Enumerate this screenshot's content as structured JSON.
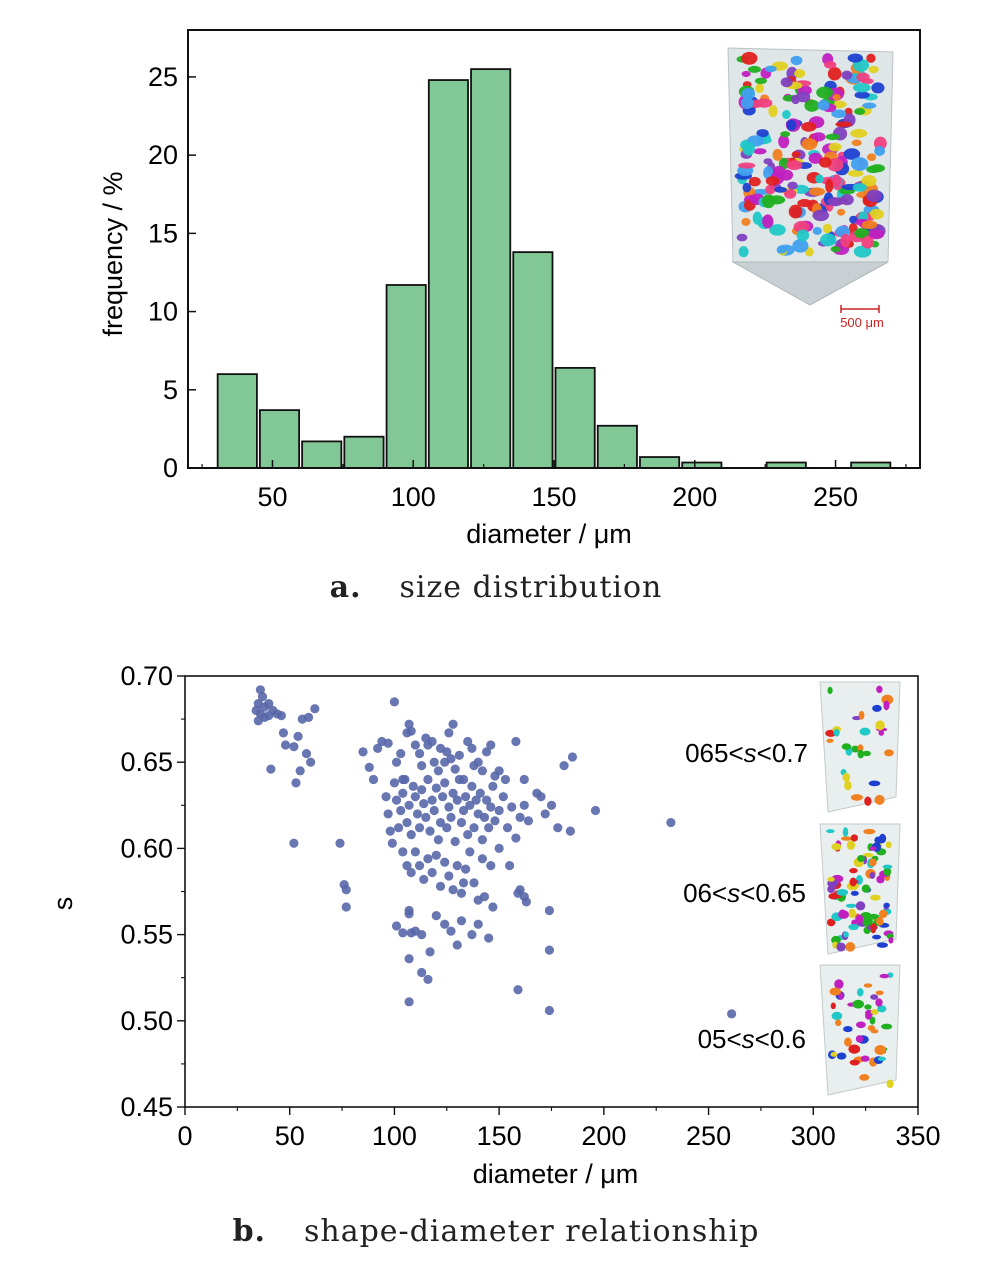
{
  "captions": {
    "a_label": "a.",
    "a_text": "size distribution",
    "b_label": "b.",
    "b_text": "shape-diameter relationship"
  },
  "colors": {
    "bar_fill": "#82c896",
    "bar_stroke": "#111111",
    "point_fill": "#5867a8",
    "scale_bar": "#cc2222"
  },
  "chart_data": [
    {
      "type": "bar",
      "title": "",
      "xlabel": "diameter / μm",
      "ylabel": "frequency / %",
      "xlim": [
        20,
        280
      ],
      "ylim": [
        0,
        28
      ],
      "xticks": [
        50,
        100,
        150,
        200,
        250
      ],
      "yticks": [
        0,
        5,
        10,
        15,
        20,
        25
      ],
      "bin_width": 15,
      "bins": [
        {
          "center": 37.5,
          "value": 6.0
        },
        {
          "center": 52.5,
          "value": 3.7
        },
        {
          "center": 67.5,
          "value": 1.7
        },
        {
          "center": 82.5,
          "value": 2.0
        },
        {
          "center": 97.5,
          "value": 11.7
        },
        {
          "center": 112.5,
          "value": 24.8
        },
        {
          "center": 127.5,
          "value": 25.5
        },
        {
          "center": 142.5,
          "value": 13.8
        },
        {
          "center": 157.5,
          "value": 6.4
        },
        {
          "center": 172.5,
          "value": 2.7
        },
        {
          "center": 187.5,
          "value": 0.7
        },
        {
          "center": 202.5,
          "value": 0.35
        },
        {
          "center": 232.5,
          "value": 0.35
        },
        {
          "center": 262.5,
          "value": 0.35
        }
      ],
      "inset": {
        "type": "3d-particle-volume",
        "scale_label": "500 μm"
      },
      "grid": false,
      "legend": "none"
    },
    {
      "type": "scatter",
      "title": "",
      "xlabel": "diameter / μm",
      "ylabel": "s",
      "xlim": [
        0,
        350
      ],
      "ylim": [
        0.45,
        0.7
      ],
      "xticks": [
        0,
        50,
        100,
        150,
        200,
        250,
        300,
        350
      ],
      "yticks": [
        0.45,
        0.5,
        0.55,
        0.6,
        0.65,
        0.7
      ],
      "yticklabels": [
        "0.45",
        "0.50",
        "0.55",
        "0.60",
        "0.65",
        "0.70"
      ],
      "insets": [
        {
          "label": "065<s<0.7",
          "pre": "065<",
          "var": "s",
          "post": "<0.7"
        },
        {
          "label": "06<s<0.65",
          "pre": "06<",
          "var": "s",
          "post": "<0.65"
        },
        {
          "label": "05<s<0.6",
          "pre": "05<",
          "var": "s",
          "post": "<0.6"
        }
      ],
      "points": [
        [
          36,
          0.692
        ],
        [
          37,
          0.688
        ],
        [
          35,
          0.684
        ],
        [
          38,
          0.682
        ],
        [
          40,
          0.684
        ],
        [
          42,
          0.68
        ],
        [
          36,
          0.678
        ],
        [
          38,
          0.676
        ],
        [
          40,
          0.677
        ],
        [
          44,
          0.678
        ],
        [
          46,
          0.677
        ],
        [
          35,
          0.674
        ],
        [
          34,
          0.68
        ],
        [
          47,
          0.667
        ],
        [
          54,
          0.665
        ],
        [
          52,
          0.659
        ],
        [
          48,
          0.66
        ],
        [
          56,
          0.675
        ],
        [
          59,
          0.676
        ],
        [
          62,
          0.681
        ],
        [
          41,
          0.646
        ],
        [
          55,
          0.645
        ],
        [
          53,
          0.638
        ],
        [
          58,
          0.655
        ],
        [
          60,
          0.65
        ],
        [
          52,
          0.603
        ],
        [
          74,
          0.603
        ],
        [
          76,
          0.579
        ],
        [
          77,
          0.576
        ],
        [
          77,
          0.566
        ],
        [
          85,
          0.656
        ],
        [
          88,
          0.647
        ],
        [
          90,
          0.64
        ],
        [
          92,
          0.658
        ],
        [
          94,
          0.662
        ],
        [
          97,
          0.661
        ],
        [
          100,
          0.685
        ],
        [
          101,
          0.65
        ],
        [
          103,
          0.655
        ],
        [
          104,
          0.64
        ],
        [
          106,
          0.667
        ],
        [
          107,
          0.672
        ],
        [
          108,
          0.668
        ],
        [
          110,
          0.66
        ],
        [
          112,
          0.655
        ],
        [
          113,
          0.648
        ],
        [
          115,
          0.664
        ],
        [
          116,
          0.66
        ],
        [
          118,
          0.662
        ],
        [
          119,
          0.65
        ],
        [
          121,
          0.645
        ],
        [
          122,
          0.658
        ],
        [
          124,
          0.65
        ],
        [
          125,
          0.656
        ],
        [
          126,
          0.667
        ],
        [
          127,
          0.652
        ],
        [
          128,
          0.672
        ],
        [
          129,
          0.646
        ],
        [
          131,
          0.654
        ],
        [
          133,
          0.64
        ],
        [
          135,
          0.662
        ],
        [
          137,
          0.658
        ],
        [
          138,
          0.648
        ],
        [
          140,
          0.65
        ],
        [
          142,
          0.645
        ],
        [
          144,
          0.656
        ],
        [
          146,
          0.66
        ],
        [
          148,
          0.642
        ],
        [
          150,
          0.645
        ],
        [
          153,
          0.64
        ],
        [
          158,
          0.662
        ],
        [
          96,
          0.63
        ],
        [
          97,
          0.62
        ],
        [
          98,
          0.61
        ],
        [
          99,
          0.603
        ],
        [
          100,
          0.638
        ],
        [
          101,
          0.628
        ],
        [
          102,
          0.612
        ],
        [
          103,
          0.622
        ],
        [
          104,
          0.632
        ],
        [
          105,
          0.64
        ],
        [
          106,
          0.615
        ],
        [
          107,
          0.625
        ],
        [
          108,
          0.608
        ],
        [
          109,
          0.636
        ],
        [
          110,
          0.63
        ],
        [
          111,
          0.62
        ],
        [
          112,
          0.612
        ],
        [
          113,
          0.634
        ],
        [
          114,
          0.626
        ],
        [
          115,
          0.618
        ],
        [
          116,
          0.64
        ],
        [
          117,
          0.61
        ],
        [
          118,
          0.628
        ],
        [
          119,
          0.622
        ],
        [
          120,
          0.635
        ],
        [
          121,
          0.605
        ],
        [
          122,
          0.615
        ],
        [
          123,
          0.63
        ],
        [
          124,
          0.638
        ],
        [
          125,
          0.612
        ],
        [
          126,
          0.624
        ],
        [
          127,
          0.618
        ],
        [
          128,
          0.632
        ],
        [
          129,
          0.604
        ],
        [
          130,
          0.628
        ],
        [
          131,
          0.64
        ],
        [
          132,
          0.615
        ],
        [
          133,
          0.622
        ],
        [
          134,
          0.63
        ],
        [
          135,
          0.608
        ],
        [
          136,
          0.625
        ],
        [
          137,
          0.636
        ],
        [
          138,
          0.612
        ],
        [
          139,
          0.628
        ],
        [
          140,
          0.62
        ],
        [
          141,
          0.632
        ],
        [
          142,
          0.605
        ],
        [
          143,
          0.618
        ],
        [
          144,
          0.628
        ],
        [
          145,
          0.612
        ],
        [
          146,
          0.624
        ],
        [
          147,
          0.636
        ],
        [
          148,
          0.616
        ],
        [
          150,
          0.622
        ],
        [
          152,
          0.63
        ],
        [
          154,
          0.612
        ],
        [
          156,
          0.624
        ],
        [
          158,
          0.606
        ],
        [
          160,
          0.618
        ],
        [
          162,
          0.625
        ],
        [
          164,
          0.616
        ],
        [
          170,
          0.63
        ],
        [
          172,
          0.62
        ],
        [
          175,
          0.625
        ],
        [
          178,
          0.612
        ],
        [
          181,
          0.648
        ],
        [
          184,
          0.61
        ],
        [
          185,
          0.653
        ],
        [
          196,
          0.622
        ],
        [
          232,
          0.615
        ],
        [
          168,
          0.632
        ],
        [
          162,
          0.64
        ],
        [
          104,
          0.598
        ],
        [
          106,
          0.59
        ],
        [
          108,
          0.586
        ],
        [
          110,
          0.598
        ],
        [
          112,
          0.59
        ],
        [
          114,
          0.582
        ],
        [
          116,
          0.594
        ],
        [
          118,
          0.586
        ],
        [
          120,
          0.596
        ],
        [
          122,
          0.578
        ],
        [
          124,
          0.592
        ],
        [
          126,
          0.584
        ],
        [
          128,
          0.576
        ],
        [
          130,
          0.59
        ],
        [
          132,
          0.574
        ],
        [
          134,
          0.588
        ],
        [
          136,
          0.598
        ],
        [
          138,
          0.58
        ],
        [
          140,
          0.57
        ],
        [
          142,
          0.594
        ],
        [
          146,
          0.59
        ],
        [
          150,
          0.6
        ],
        [
          155,
          0.59
        ],
        [
          160,
          0.576
        ],
        [
          162,
          0.572
        ],
        [
          159,
          0.574
        ],
        [
          163,
          0.569
        ],
        [
          143,
          0.572
        ],
        [
          147,
          0.566
        ],
        [
          133,
          0.58
        ],
        [
          101,
          0.555
        ],
        [
          104,
          0.551
        ],
        [
          107,
          0.564
        ],
        [
          108,
          0.551
        ],
        [
          107,
          0.562
        ],
        [
          110,
          0.552
        ],
        [
          113,
          0.55
        ],
        [
          117,
          0.54
        ],
        [
          120,
          0.561
        ],
        [
          124,
          0.556
        ],
        [
          127,
          0.552
        ],
        [
          130,
          0.544
        ],
        [
          132,
          0.558
        ],
        [
          137,
          0.55
        ],
        [
          140,
          0.556
        ],
        [
          145,
          0.548
        ],
        [
          174,
          0.564
        ],
        [
          174,
          0.541
        ],
        [
          107,
          0.536
        ],
        [
          113,
          0.528
        ],
        [
          116,
          0.524
        ],
        [
          107,
          0.511
        ],
        [
          159,
          0.518
        ],
        [
          174,
          0.506
        ],
        [
          261,
          0.504
        ]
      ],
      "grid": false,
      "legend": "none"
    }
  ]
}
